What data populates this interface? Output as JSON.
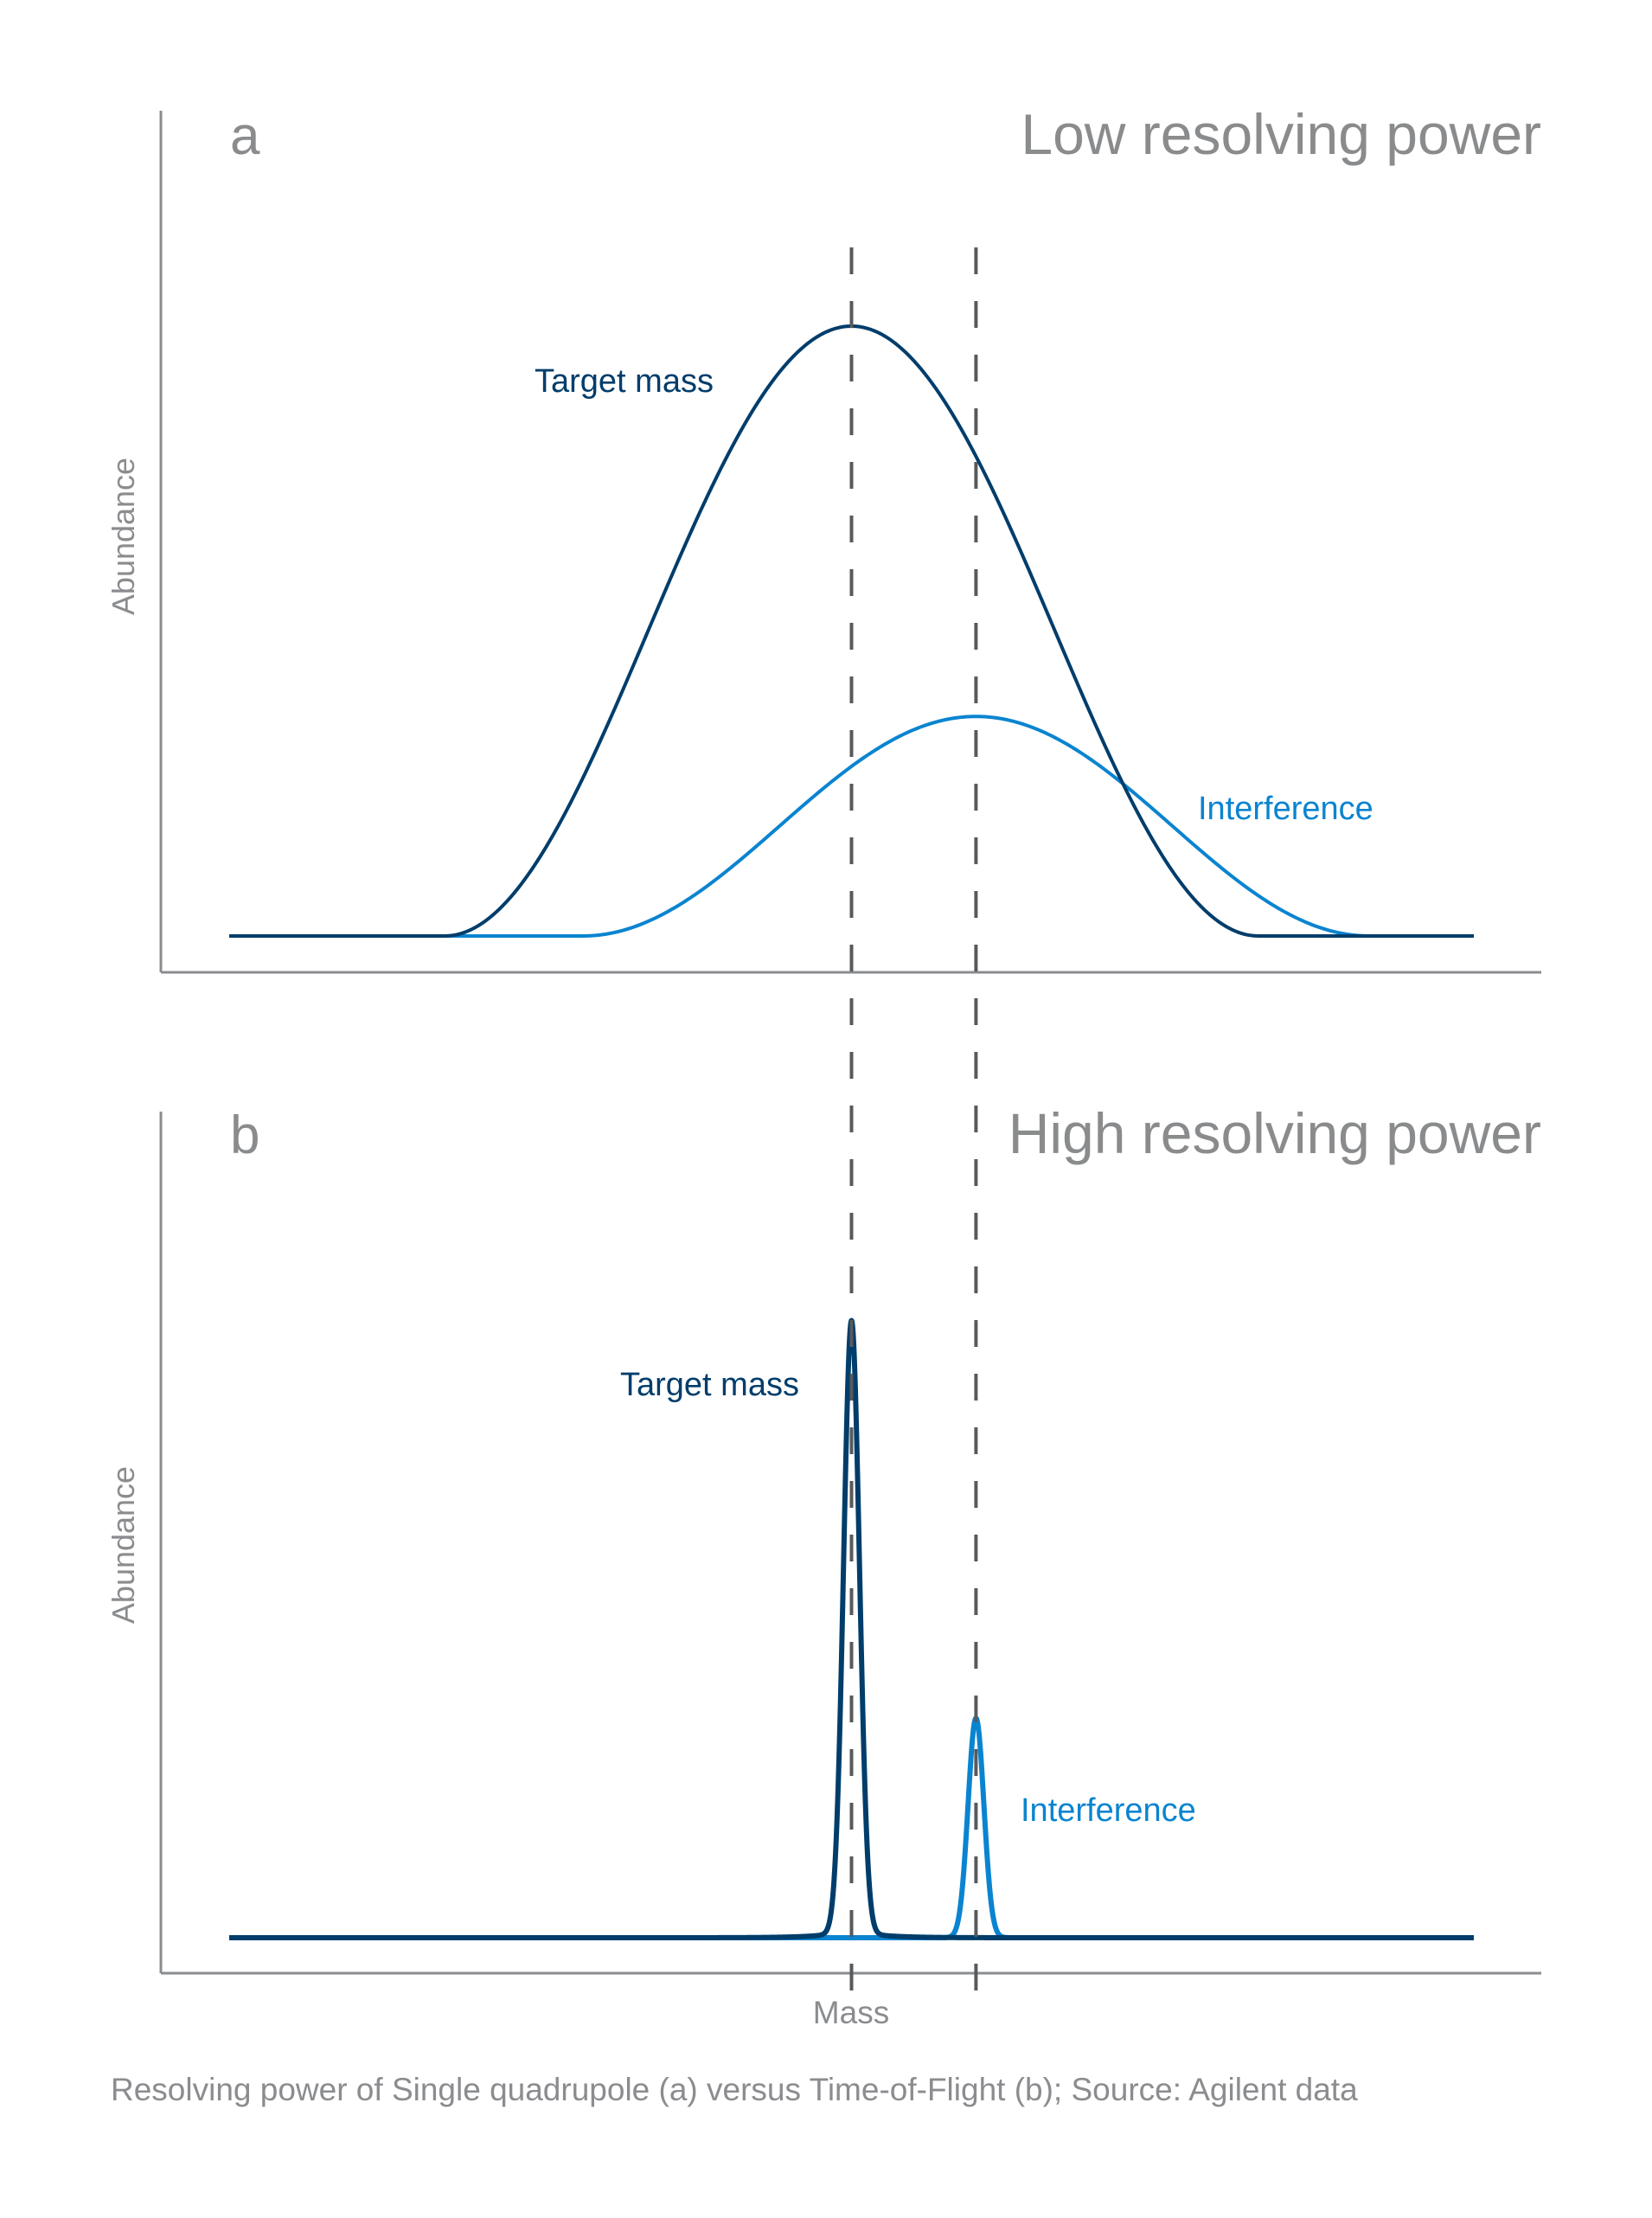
{
  "chart_data": [
    {
      "type": "line",
      "panel_label": "a",
      "title": "Low resolving power",
      "xlabel": "",
      "ylabel": "Abundance",
      "xlim": [
        0,
        100
      ],
      "ylim": [
        0,
        1
      ],
      "grid": false,
      "reference_lines_x": [
        50,
        60
      ],
      "series": [
        {
          "name": "Target mass",
          "color": "#003d6b",
          "center": 50,
          "half_width": 32.7,
          "peak": 1.0,
          "shape": "broad"
        },
        {
          "name": "Interference",
          "color": "#0a84d0",
          "center": 60,
          "half_width": 31.6,
          "peak": 0.36,
          "shape": "broad"
        }
      ],
      "annotations": [
        "Target mass",
        "Interference"
      ]
    },
    {
      "type": "line",
      "panel_label": "b",
      "title": "High resolving power",
      "xlabel": "Mass",
      "ylabel": "Abundance",
      "xlim": [
        0,
        100
      ],
      "ylim": [
        0,
        1
      ],
      "grid": false,
      "reference_lines_x": [
        50,
        60
      ],
      "series": [
        {
          "name": "Target mass",
          "color": "#003d6b",
          "center": 50,
          "half_width": 1.4,
          "peak": 1.0,
          "shape": "narrow"
        },
        {
          "name": "Interference",
          "color": "#0a84d0",
          "center": 60,
          "half_width": 1.4,
          "peak": 0.36,
          "shape": "narrow"
        }
      ],
      "annotations": [
        "Target mass",
        "Interference"
      ]
    }
  ],
  "caption": "Resolving power of Single quadrupole (a) versus Time-of-Flight (b); Source: Agilent data"
}
